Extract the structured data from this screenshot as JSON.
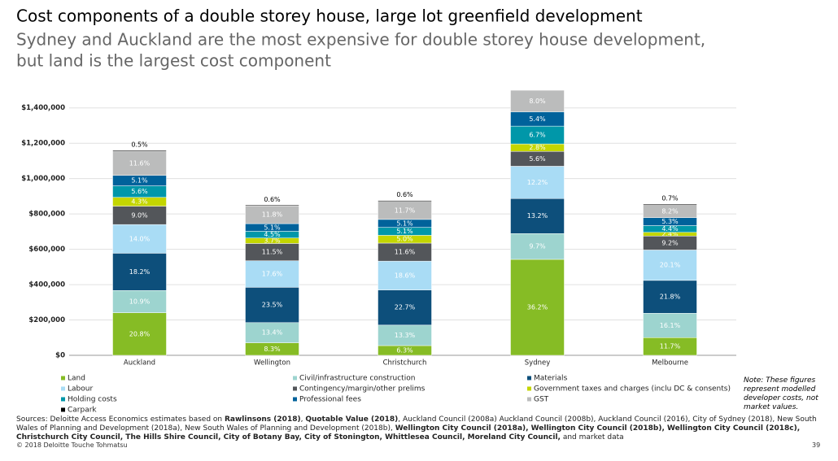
{
  "chart_data": {
    "type": "stacked-bar",
    "title": "Cost components of a double storey house, large lot greenfield development",
    "subtitle": [
      "Sydney and Auckland are the most expensive for double storey house development,",
      "but land is the largest cost component"
    ],
    "categories": [
      "Auckland",
      "Wellington",
      "Christchurch",
      "Sydney",
      "Melbourne"
    ],
    "ylim": [
      0,
      1500000
    ],
    "yticks": [
      {
        "value": 0,
        "label": "$0"
      },
      {
        "value": 200000,
        "label": "$200,000"
      },
      {
        "value": 400000,
        "label": "$400,000"
      },
      {
        "value": 600000,
        "label": "$600,000"
      },
      {
        "value": 800000,
        "label": "$800,000"
      },
      {
        "value": 1000000,
        "label": "$1,000,000"
      },
      {
        "value": 1200000,
        "label": "$1,200,000"
      },
      {
        "value": 1400000,
        "label": "$1,400,000"
      }
    ],
    "grid": true,
    "series": [
      {
        "name": "Land",
        "color": "#86bc25",
        "values": [
          241000,
          71000,
          55000,
          543000,
          100000
        ],
        "value_labels": [
          "20.8%",
          "8.3%",
          "6.3%",
          "36.2%",
          "11.7%"
        ]
      },
      {
        "name": "Civil/infrastructure construction",
        "color": "#9dd4cf",
        "values": [
          126000,
          114000,
          116000,
          146000,
          138000
        ],
        "value_labels": [
          "10.9%",
          "13.4%",
          "13.3%",
          "9.7%",
          "16.1%"
        ]
      },
      {
        "name": "Materials",
        "color": "#0d4f7b",
        "values": [
          211000,
          200000,
          199000,
          198000,
          186000
        ],
        "value_labels": [
          "18.2%",
          "23.5%",
          "22.7%",
          "13.2%",
          "21.8%"
        ]
      },
      {
        "name": "Labour",
        "color": "#a9dcf5",
        "values": [
          162000,
          150000,
          163000,
          183000,
          172000
        ],
        "value_labels": [
          "14.0%",
          "17.6%",
          "18.6%",
          "12.2%",
          "20.1%"
        ]
      },
      {
        "name": "Contingency/margin/other prelims",
        "color": "#53565a",
        "values": [
          104000,
          98000,
          102000,
          84000,
          79000
        ],
        "value_labels": [
          "9.0%",
          "11.5%",
          "11.6%",
          "5.6%",
          "9.2%"
        ]
      },
      {
        "name": "Government taxes and charges (inclu DC & consents)",
        "color": "#c4d600",
        "values": [
          50000,
          31000,
          44000,
          42000,
          21000
        ],
        "value_labels": [
          "4.3%",
          "3.7%",
          "5.0%",
          "2.8%",
          "2.4%"
        ]
      },
      {
        "name": "Holding costs",
        "color": "#0097a9",
        "values": [
          65000,
          38000,
          45000,
          101000,
          38000
        ],
        "value_labels": [
          "5.6%",
          "4.5%",
          "5.1%",
          "6.7%",
          "4.4%"
        ]
      },
      {
        "name": "Professional fees",
        "color": "#00629b",
        "values": [
          59000,
          43000,
          45000,
          81000,
          45000
        ],
        "value_labels": [
          "5.1%",
          "5.1%",
          "5.1%",
          "5.4%",
          "5.3%"
        ]
      },
      {
        "name": "GST",
        "color": "#bbbcbc",
        "values": [
          135000,
          100000,
          102000,
          120000,
          70000
        ],
        "value_labels": [
          "11.6%",
          "11.8%",
          "11.7%",
          "8.0%",
          "8.2%"
        ]
      },
      {
        "name": "Carpark",
        "color": "#000000",
        "values": [
          6000,
          5000,
          5000,
          3000,
          6000
        ],
        "value_labels": [
          "0.5%",
          "0.6%",
          "0.6%",
          null,
          "0.7%"
        ]
      }
    ],
    "note": "Note: These figures represent modelled developer costs, not market values."
  },
  "sources": [
    {
      "text": "Sources: Deloitte Access Economics estimates based on ",
      "bold": false
    },
    {
      "text": "Rawlinsons (2018)",
      "bold": true
    },
    {
      "text": ", ",
      "bold": false
    },
    {
      "text": "Quotable Value (2018)",
      "bold": true
    },
    {
      "text": ", Auckland Council (2008a) Auckland Council (2008b), Auckland Council (2016), City of Sydney (2018), New South Wales of Planning and Development (2018a), New South Wales of Planning and Development (2018b), ",
      "bold": false
    },
    {
      "text": "Wellington City Council (2018a), Wellington City Council (2018b), Wellington City Council (2018c), Christchurch City Council, The Hills Shire Council, City of Botany Bay, City of Stonington, Whittlesea Council, Moreland City Council,",
      "bold": true
    },
    {
      "text": " and market data",
      "bold": false
    }
  ],
  "copyright": "© 2018 Deloitte Touche Tohmatsu",
  "page_number": "39"
}
